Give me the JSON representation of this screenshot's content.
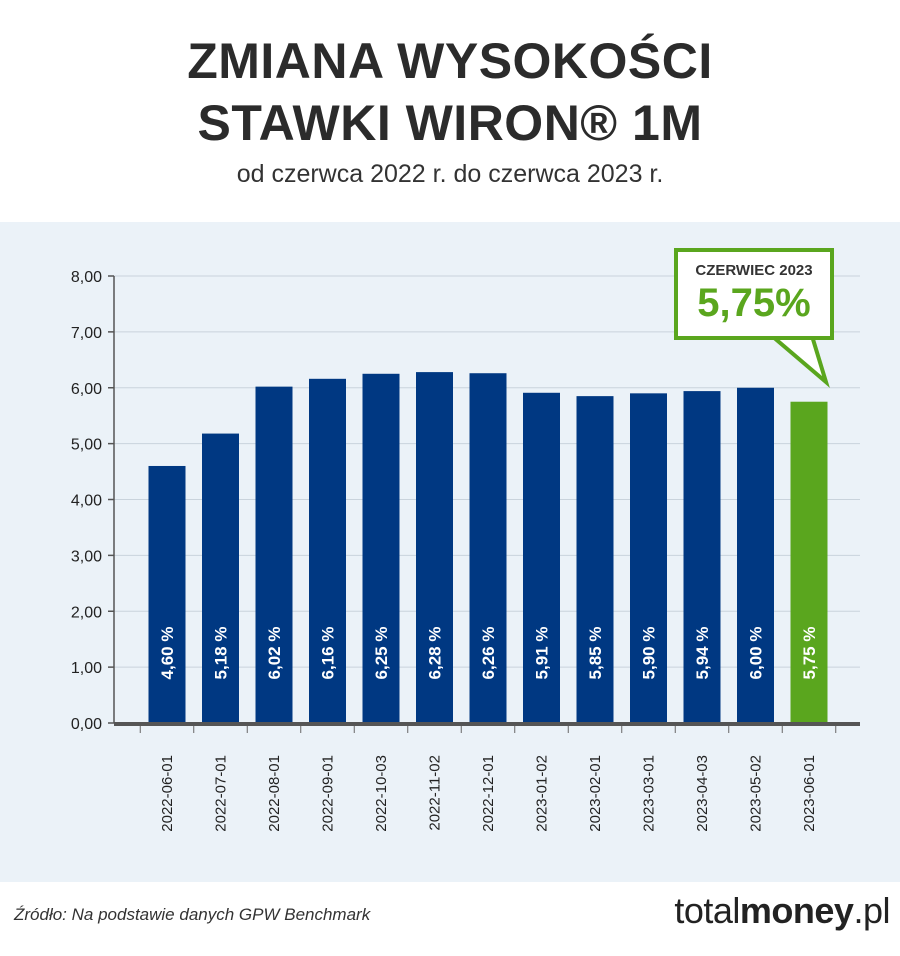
{
  "header": {
    "title_line1": "ZMIANA WYSOKOŚCI",
    "title_line2": "STAWKI WIRON® 1M",
    "subtitle": "od czerwca 2022 r. do czerwca 2023 r."
  },
  "callout": {
    "label": "CZERWIEC 2023",
    "value": "5,75%"
  },
  "footer": {
    "source": "Źródło: Na podstawie danych GPW Benchmark",
    "brand_regular": "total",
    "brand_bold": "money",
    "brand_suffix": ".pl"
  },
  "colors": {
    "bar": "#003882",
    "bar_highlight": "#5aa61e",
    "panel": "#ebf2f8"
  },
  "chart_data": {
    "type": "bar",
    "title": "ZMIANA WYSOKOŚCI STAWKI WIRON® 1M",
    "subtitle": "od czerwca 2022 r. do czerwca 2023 r.",
    "xlabel": "",
    "ylabel": "",
    "ylim": [
      0,
      8
    ],
    "yticks": [
      "0,00",
      "1,00",
      "2,00",
      "3,00",
      "4,00",
      "5,00",
      "6,00",
      "7,00",
      "8,00"
    ],
    "categories": [
      "2022-06-01",
      "2022-07-01",
      "2022-08-01",
      "2022-09-01",
      "2022-10-03",
      "2022-11-02",
      "2022-12-01",
      "2023-01-02",
      "2023-02-01",
      "2023-03-01",
      "2023-04-03",
      "2023-05-02",
      "2023-06-01"
    ],
    "values": [
      4.6,
      5.18,
      6.02,
      6.16,
      6.25,
      6.28,
      6.26,
      5.91,
      5.85,
      5.9,
      5.94,
      6.0,
      5.75
    ],
    "labels": [
      "4,60 %",
      "5,18 %",
      "6,02 %",
      "6,16 %",
      "6,25 %",
      "6,28 %",
      "6,26 %",
      "5,91 %",
      "5,85 %",
      "5,90 %",
      "5,94 %",
      "6,00 %",
      "5,75 %"
    ],
    "highlight_index": 12,
    "grid": true
  }
}
